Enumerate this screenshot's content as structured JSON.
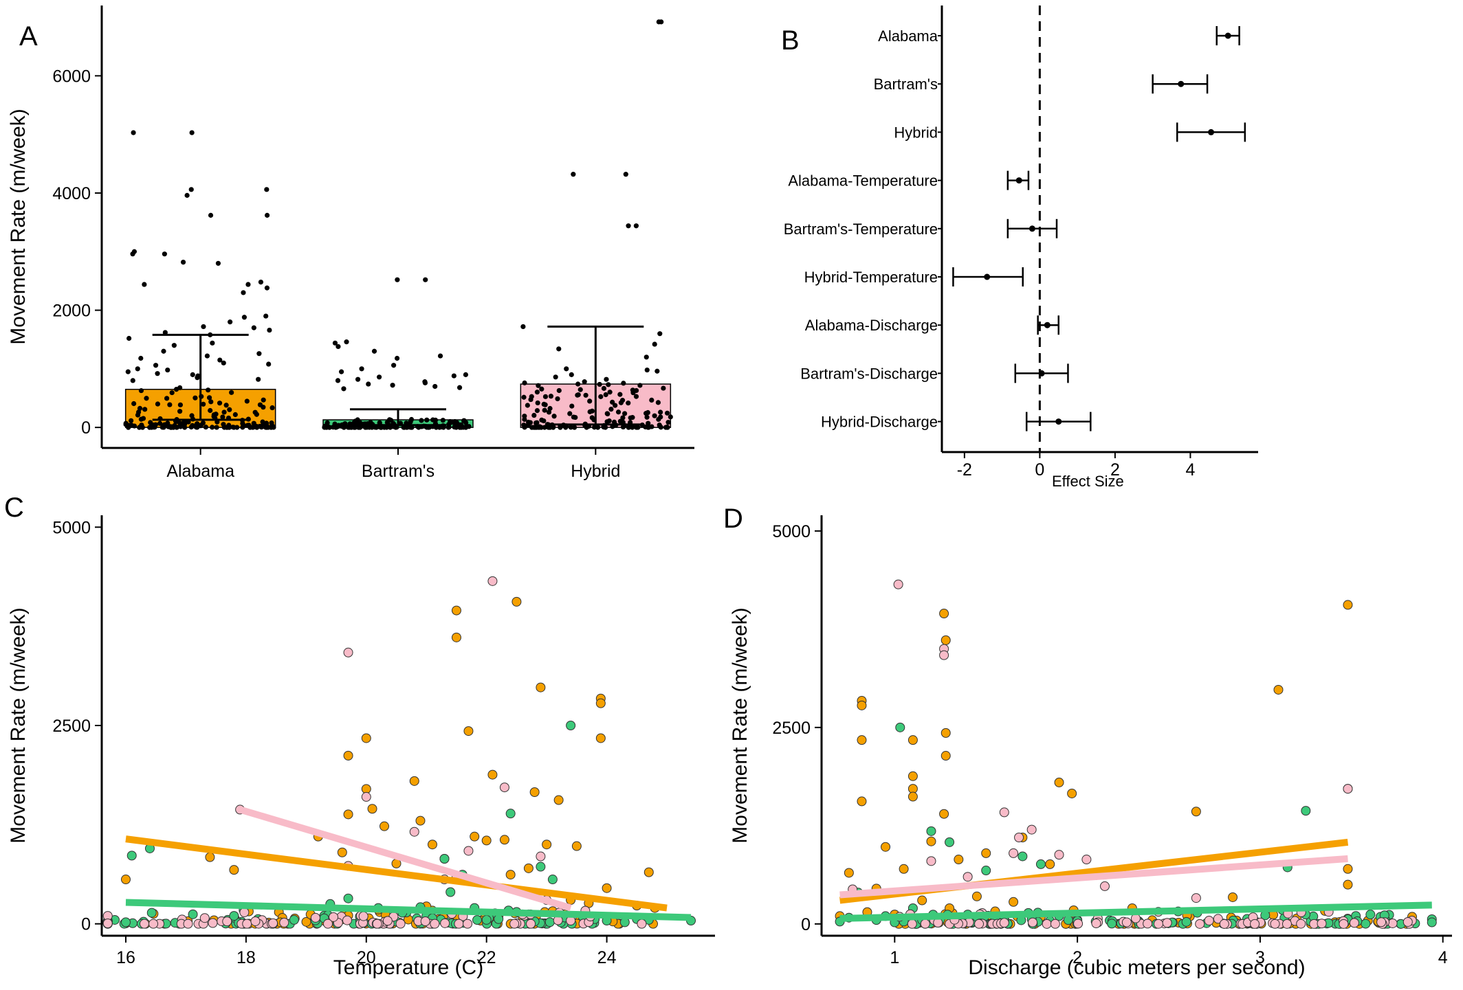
{
  "colors": {
    "alabama": "#F5A000",
    "bartrams": "#3DC97A",
    "hybrid": "#F8BBC8",
    "ink": "#000000"
  },
  "panels": {
    "A": {
      "label": "A"
    },
    "B": {
      "label": "B"
    },
    "C": {
      "label": "C"
    },
    "D": {
      "label": "D"
    }
  },
  "chart_data": [
    {
      "id": "A",
      "type": "bar",
      "subtype": "bar-with-errorbars-and-jittered-points",
      "ylabel": "Movement Rate (m/week)",
      "yticks": [
        0,
        2000,
        4000,
        6000
      ],
      "ylim": [
        -350,
        7200
      ],
      "categories": [
        "Alabama",
        "Bartram's",
        "Hybrid"
      ],
      "bar_colors": [
        "#F5A000",
        "#3DC97A",
        "#F8BBC8"
      ],
      "values": [
        650,
        130,
        740
      ],
      "error_upper": [
        1580,
        310,
        1720
      ],
      "error_lower": [
        130,
        40,
        50
      ],
      "outlier_points": [
        [
          5030,
          5030,
          4060,
          4060,
          3960,
          3620,
          3620,
          3000,
          2960,
          2960,
          2820,
          2800,
          2480,
          2440,
          2440,
          2380,
          2300,
          1900,
          1880,
          1800,
          1720,
          1700,
          1660,
          1620,
          1580,
          1520,
          1440,
          1400,
          1300,
          1260,
          1220,
          1180,
          1150,
          1100,
          1080,
          1060,
          1000,
          980,
          950,
          920,
          900,
          880,
          850,
          820,
          800
        ],
        [
          2520,
          2520,
          1460,
          1440,
          1380,
          1300,
          1220,
          1180,
          1060,
          1000,
          950,
          900,
          880,
          860,
          820,
          800,
          780,
          760,
          740,
          720,
          700,
          680,
          660
        ],
        [
          6920,
          6920,
          4320,
          4320,
          3440,
          3440,
          1720,
          1600,
          1420,
          1340,
          1200,
          1000,
          980,
          960,
          900,
          860,
          820,
          780
        ]
      ]
    },
    {
      "id": "B",
      "type": "scatter",
      "subtype": "coefficient-plot",
      "xlabel": "Effect Size",
      "xticks": [
        -2,
        0,
        2,
        4
      ],
      "xlim": [
        -2.6,
        5.8
      ],
      "terms": [
        "Alabama",
        "Bartram's",
        "Hybrid",
        "Alabama-Temperature",
        "Bartram's-Temperature",
        "Hybrid-Temperature",
        "Alabama-Discharge",
        "Bartram's-Discharge",
        "Hybrid-Discharge"
      ],
      "estimates": [
        5.0,
        3.75,
        4.55,
        -0.55,
        -0.2,
        -1.4,
        0.2,
        0.05,
        0.5
      ],
      "lower": [
        4.7,
        3.0,
        3.65,
        -0.85,
        -0.85,
        -2.3,
        -0.05,
        -0.65,
        -0.35
      ],
      "upper": [
        5.3,
        4.45,
        5.45,
        -0.3,
        0.45,
        -0.45,
        0.5,
        0.75,
        1.35
      ],
      "reference_line": 0
    },
    {
      "id": "C",
      "type": "scatter",
      "xlabel": "Temperature (C)",
      "ylabel": "Movement Rate (m/week)",
      "xticks": [
        16,
        18,
        20,
        22,
        24
      ],
      "yticks": [
        0,
        2500,
        5000
      ],
      "xlim": [
        15.6,
        25.8
      ],
      "ylim": [
        -150,
        5150
      ],
      "series": [
        {
          "color": "#F5A000",
          "x": [
            16.0,
            17.4,
            17.8,
            19.7,
            19.7,
            20.0,
            20.0,
            20.3,
            20.8,
            21.1,
            21.5,
            21.5,
            21.7,
            22.1,
            22.3,
            22.5,
            22.8,
            22.9,
            23.2,
            23.5,
            23.9,
            23.9,
            23.9,
            24.7,
            19.2,
            19.6,
            20.1,
            20.5,
            20.9,
            21.3,
            21.8,
            22.0,
            22.4,
            22.7,
            23.0,
            23.4,
            23.7,
            24.0,
            24.5,
            24.8,
            19.9,
            20.6,
            21.2,
            21.9,
            22.6,
            23.3,
            24.1,
            20.2,
            21.0,
            22.2,
            23.1,
            23.8
          ],
          "y": [
            560,
            840,
            680,
            1380,
            2120,
            2340,
            1700,
            1230,
            1800,
            1000,
            3950,
            3610,
            2430,
            1880,
            1060,
            4060,
            1660,
            2980,
            1560,
            980,
            2840,
            2780,
            2340,
            650,
            1100,
            900,
            1450,
            760,
            1300,
            820,
            1100,
            1050,
            620,
            700,
            1000,
            300,
            260,
            450,
            230,
            200,
            80,
            150,
            60,
            40,
            90,
            120,
            30,
            180,
            220,
            100,
            160,
            60
          ]
        },
        {
          "color": "#3DC97A",
          "x": [
            16.0,
            16.1,
            16.4,
            17.8,
            18.2,
            18.8,
            19.4,
            19.7,
            20.2,
            20.6,
            21.0,
            21.3,
            21.6,
            22.0,
            22.4,
            22.9,
            23.1,
            23.4,
            23.8,
            24.3,
            24.7,
            25.4,
            19.3,
            20.5,
            21.4,
            21.8,
            22.2,
            22.7,
            23.6,
            24.0,
            19.9,
            21.1,
            22.5,
            23.3,
            24.5,
            20.9,
            22.8
          ],
          "y": [
            20,
            860,
            950,
            100,
            60,
            50,
            250,
            320,
            200,
            140,
            100,
            820,
            620,
            50,
            1390,
            720,
            560,
            2500,
            60,
            20,
            50,
            40,
            70,
            30,
            400,
            200,
            60,
            120,
            90,
            40,
            30,
            70,
            150,
            80,
            60,
            210,
            30
          ]
        },
        {
          "color": "#F8BBC8",
          "x": [
            17.9,
            19.7,
            19.7,
            20.0,
            20.8,
            21.3,
            21.7,
            22.1,
            22.3,
            22.6,
            23.0,
            23.4,
            21.5,
            22.9
          ],
          "y": [
            1440,
            3420,
            730,
            1600,
            1160,
            560,
            920,
            4320,
            1720,
            120,
            300,
            40,
            600,
            850
          ]
        }
      ],
      "fit_lines": [
        {
          "color": "#F5A000",
          "x": [
            16.0,
            25.0
          ],
          "y": [
            1070,
            200
          ]
        },
        {
          "color": "#3DC97A",
          "x": [
            16.0,
            25.4
          ],
          "y": [
            270,
            80
          ]
        },
        {
          "color": "#F8BBC8",
          "x": [
            17.9,
            23.4
          ],
          "y": [
            1440,
            200
          ]
        }
      ]
    },
    {
      "id": "D",
      "type": "scatter",
      "xlabel": "Discharge (cubic meters per second)",
      "ylabel": "Movement Rate (m/week)",
      "xticks": [
        1,
        2,
        3,
        4
      ],
      "yticks": [
        0,
        2500,
        5000
      ],
      "xlim": [
        0.6,
        4.05
      ],
      "ylim": [
        -150,
        5200
      ],
      "series": [
        {
          "color": "#F5A000",
          "x": [
            0.82,
            0.82,
            0.82,
            0.82,
            1.1,
            1.1,
            1.1,
            1.1,
            1.27,
            1.28,
            1.28,
            1.28,
            1.27,
            1.9,
            1.97,
            2.65,
            2.85,
            3.1,
            3.48,
            3.48,
            3.48,
            3.48,
            0.75,
            0.95,
            1.05,
            1.2,
            1.35,
            1.5,
            1.7,
            1.85,
            2.1,
            0.9,
            1.15,
            1.45,
            1.65,
            2.3,
            0.7,
            0.85,
            1.0,
            1.4,
            1.6,
            1.8,
            2.0,
            2.6,
            3.2,
            1.3,
            1.55
          ],
          "y": [
            2840,
            2780,
            2340,
            1560,
            2340,
            1880,
            1720,
            1620,
            3950,
            3610,
            2430,
            2140,
            1400,
            1800,
            1660,
            1430,
            340,
            2980,
            4060,
            1720,
            700,
            500,
            650,
            980,
            700,
            1050,
            820,
            900,
            1100,
            760,
            620,
            450,
            300,
            350,
            280,
            200,
            100,
            150,
            120,
            80,
            60,
            90,
            50,
            110,
            70,
            200,
            160
          ]
        },
        {
          "color": "#3DC97A",
          "x": [
            0.7,
            0.8,
            0.9,
            1.0,
            1.03,
            1.1,
            1.2,
            1.25,
            1.3,
            1.4,
            1.5,
            1.6,
            1.7,
            1.8,
            1.9,
            2.0,
            2.1,
            3.15,
            3.25,
            3.48,
            3.94,
            3.94,
            0.75,
            0.95,
            1.15,
            1.35,
            1.55,
            1.75,
            1.95,
            1.05,
            1.45,
            1.85
          ],
          "y": [
            30,
            400,
            50,
            20,
            2500,
            200,
            1180,
            60,
            1040,
            120,
            680,
            40,
            860,
            760,
            100,
            40,
            30,
            720,
            1440,
            60,
            60,
            20,
            80,
            100,
            50,
            40,
            70,
            60,
            50,
            30,
            90,
            40
          ]
        },
        {
          "color": "#F8BBC8",
          "x": [
            0.77,
            1.02,
            1.27,
            1.27,
            1.6,
            1.65,
            1.68,
            1.75,
            1.9,
            2.05,
            2.15,
            2.27,
            2.65,
            3.48,
            1.2,
            1.4
          ],
          "y": [
            440,
            4320,
            3500,
            3420,
            1420,
            900,
            1100,
            1200,
            880,
            820,
            480,
            20,
            330,
            1720,
            800,
            600
          ]
        }
      ],
      "fit_lines": [
        {
          "color": "#F5A000",
          "x": [
            0.7,
            3.48
          ],
          "y": [
            300,
            1040
          ]
        },
        {
          "color": "#3DC97A",
          "x": [
            0.7,
            3.94
          ],
          "y": [
            70,
            240
          ]
        },
        {
          "color": "#F8BBC8",
          "x": [
            0.7,
            3.48
          ],
          "y": [
            370,
            830
          ]
        }
      ]
    }
  ]
}
